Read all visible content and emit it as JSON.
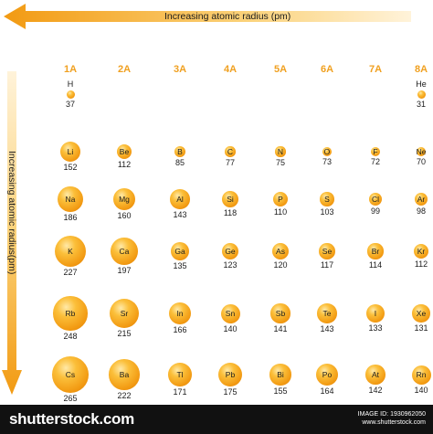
{
  "horizontal_arrow_label": "Increasing atomic radius (pm)",
  "vertical_arrow_label": "Increasing atomic radius(pm)",
  "groups": [
    "1A",
    "2A",
    "3A",
    "4A",
    "5A",
    "6A",
    "7A",
    "8A"
  ],
  "elements": [
    {
      "symbol": "H",
      "radius": "37",
      "group": 0,
      "period": 0
    },
    {
      "symbol": "He",
      "radius": "31",
      "group": 7,
      "period": 0
    },
    {
      "symbol": "Li",
      "radius": "152",
      "group": 0,
      "period": 1
    },
    {
      "symbol": "Be",
      "radius": "112",
      "group": 1,
      "period": 1
    },
    {
      "symbol": "B",
      "radius": "85",
      "group": 2,
      "period": 1
    },
    {
      "symbol": "C",
      "radius": "77",
      "group": 3,
      "period": 1
    },
    {
      "symbol": "N",
      "radius": "75",
      "group": 4,
      "period": 1
    },
    {
      "symbol": "O",
      "radius": "73",
      "group": 5,
      "period": 1
    },
    {
      "symbol": "F",
      "radius": "72",
      "group": 6,
      "period": 1
    },
    {
      "symbol": "Ne",
      "radius": "70",
      "group": 7,
      "period": 1
    },
    {
      "symbol": "Na",
      "radius": "186",
      "group": 0,
      "period": 2
    },
    {
      "symbol": "Mg",
      "radius": "160",
      "group": 1,
      "period": 2
    },
    {
      "symbol": "Al",
      "radius": "143",
      "group": 2,
      "period": 2
    },
    {
      "symbol": "Si",
      "radius": "118",
      "group": 3,
      "period": 2
    },
    {
      "symbol": "P",
      "radius": "110",
      "group": 4,
      "period": 2
    },
    {
      "symbol": "S",
      "radius": "103",
      "group": 5,
      "period": 2
    },
    {
      "symbol": "Cl",
      "radius": "99",
      "group": 6,
      "period": 2
    },
    {
      "symbol": "Ar",
      "radius": "98",
      "group": 7,
      "period": 2
    },
    {
      "symbol": "K",
      "radius": "227",
      "group": 0,
      "period": 3
    },
    {
      "symbol": "Ca",
      "radius": "197",
      "group": 1,
      "period": 3
    },
    {
      "symbol": "Ga",
      "radius": "135",
      "group": 2,
      "period": 3
    },
    {
      "symbol": "Ge",
      "radius": "123",
      "group": 3,
      "period": 3
    },
    {
      "symbol": "As",
      "radius": "120",
      "group": 4,
      "period": 3
    },
    {
      "symbol": "Se",
      "radius": "117",
      "group": 5,
      "period": 3
    },
    {
      "symbol": "Br",
      "radius": "114",
      "group": 6,
      "period": 3
    },
    {
      "symbol": "Kr",
      "radius": "112",
      "group": 7,
      "period": 3
    },
    {
      "symbol": "Rb",
      "radius": "248",
      "group": 0,
      "period": 4
    },
    {
      "symbol": "Sr",
      "radius": "215",
      "group": 1,
      "period": 4
    },
    {
      "symbol": "In",
      "radius": "166",
      "group": 2,
      "period": 4
    },
    {
      "symbol": "Sn",
      "radius": "140",
      "group": 3,
      "period": 4
    },
    {
      "symbol": "Sb",
      "radius": "141",
      "group": 4,
      "period": 4
    },
    {
      "symbol": "Te",
      "radius": "143",
      "group": 5,
      "period": 4
    },
    {
      "symbol": "I",
      "radius": "133",
      "group": 6,
      "period": 4
    },
    {
      "symbol": "Xe",
      "radius": "131",
      "group": 7,
      "period": 4
    },
    {
      "symbol": "Cs",
      "radius": "265",
      "group": 0,
      "period": 5
    },
    {
      "symbol": "Ba",
      "radius": "222",
      "group": 1,
      "period": 5
    },
    {
      "symbol": "Tl",
      "radius": "171",
      "group": 2,
      "period": 5
    },
    {
      "symbol": "Pb",
      "radius": "175",
      "group": 3,
      "period": 5
    },
    {
      "symbol": "Bi",
      "radius": "155",
      "group": 4,
      "period": 5
    },
    {
      "symbol": "Po",
      "radius": "164",
      "group": 5,
      "period": 5
    },
    {
      "symbol": "At",
      "radius": "142",
      "group": 6,
      "period": 5
    },
    {
      "symbol": "Rn",
      "radius": "140",
      "group": 7,
      "period": 5
    }
  ],
  "footer": {
    "brand": "shutterstock.com",
    "image_id": "IMAGE ID: 1930962050",
    "site": "www.shutterstock.com"
  },
  "colors": {
    "atom": "#f29a12",
    "group_label": "#f0a020",
    "arrow": "#f0a020"
  }
}
